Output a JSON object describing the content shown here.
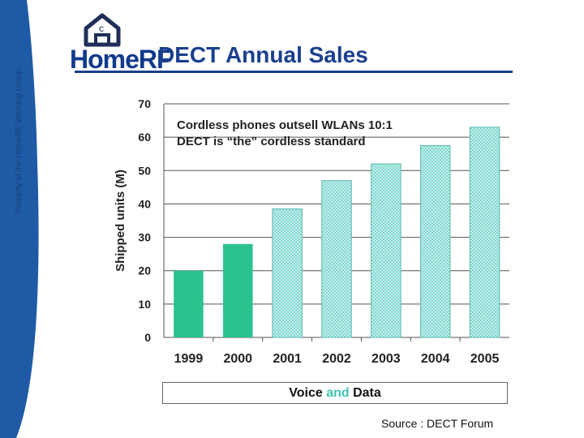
{
  "sidebar": {
    "text": "Property of the HomeRF Working Group",
    "color": "#1f5aa6"
  },
  "logo": {
    "word_home": "Home",
    "word_rf": "RF",
    "house_letter": "c"
  },
  "header": {
    "title": "DECT Annual Sales"
  },
  "annotation": {
    "line1": "Cordless phones outsell WLANs 10:1",
    "line2": "DECT is “the” cordless standard"
  },
  "footer": {
    "legend_prefix": "Voice ",
    "legend_highlight": "and",
    "legend_suffix": " Data",
    "source": "Source : DECT Forum"
  },
  "chart_data": {
    "type": "bar",
    "title": "",
    "xlabel": "",
    "ylabel": "Shipped units (M)",
    "ylim": [
      0,
      70
    ],
    "yticks": [
      "0",
      "10",
      "20",
      "30",
      "40",
      "50",
      "60",
      "70"
    ],
    "grid": true,
    "categories": [
      "1999",
      "2000",
      "2001",
      "2002",
      "2003",
      "2004",
      "2005"
    ],
    "values": [
      20,
      28,
      38.5,
      47,
      52,
      57.5,
      63
    ],
    "bar_styles": [
      "solid",
      "solid",
      "hatched",
      "hatched",
      "hatched",
      "hatched",
      "hatched"
    ],
    "colors": {
      "solid": "#2bc28e",
      "hatched": "#7fd8d0"
    }
  }
}
